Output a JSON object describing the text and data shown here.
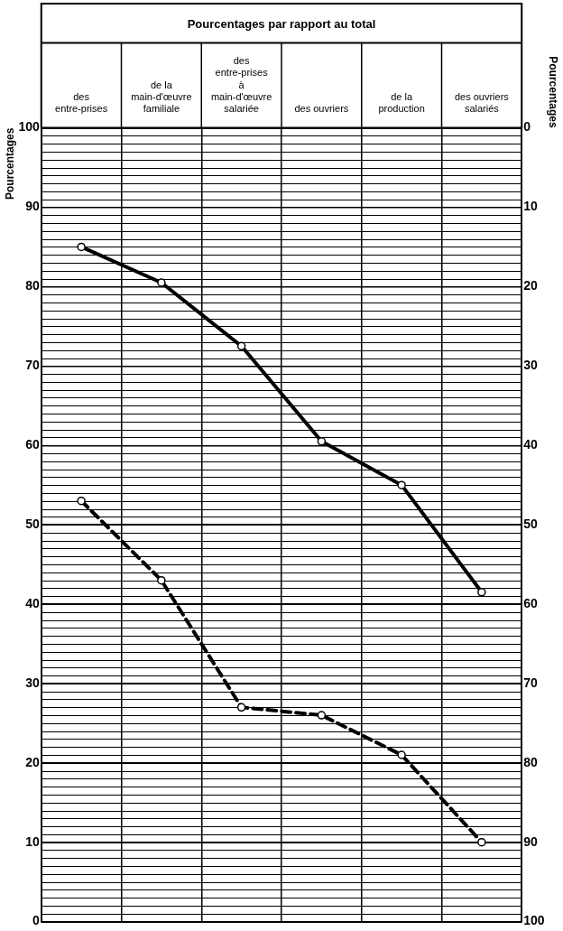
{
  "chart_data": {
    "type": "line",
    "title": "Pourcentages par rapport au total",
    "ylabel": "Pourcentages",
    "y2label": "Pourcentages",
    "categories": [
      "des entre-prises",
      "de la main-d'œuvre familiale",
      "des entre-prises à main-d'œuvre salariée",
      "des ouvriers",
      "de la production",
      "des ouvriers salariés"
    ],
    "series": [
      {
        "color": "#000000",
        "values": [
          85,
          80.5,
          72.5,
          60.5,
          55,
          41.5
        ],
        "line_style": "solid"
      },
      {
        "color": "#000000",
        "values": [
          53,
          43,
          27,
          26,
          21,
          10
        ],
        "line_style": "dashed"
      }
    ],
    "ylim": [
      0,
      100
    ],
    "yticks": [
      0,
      10,
      20,
      30,
      40,
      50,
      60,
      70,
      80,
      90,
      100
    ],
    "y2lim": [
      100,
      0
    ],
    "y2ticks": [
      0,
      10,
      20,
      30,
      40,
      50,
      60,
      70,
      80,
      90,
      100
    ],
    "grid": true,
    "legend": false,
    "marker": "circle"
  }
}
